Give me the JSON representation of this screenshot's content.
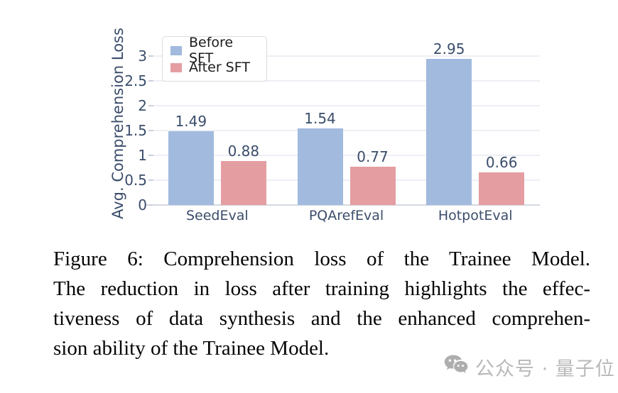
{
  "figure": {
    "caption": {
      "lines": [
        "Figure 6: Comprehension loss of the Trainee Model.",
        "The reduction in loss after training highlights the effec-",
        "tiveness of data synthesis and the enhanced comprehen-",
        "sion ability of the Trainee Model."
      ]
    },
    "watermark": {
      "icon": "wechat-icon",
      "text": "公众号 · 量子位",
      "color": "#b9b9b9"
    }
  },
  "chart_data": {
    "type": "bar",
    "title": "",
    "xlabel": "",
    "ylabel": "Avg. Comprehension Loss",
    "categories": [
      "SeedEval",
      "PQArefEval",
      "HotpotEval"
    ],
    "series": [
      {
        "name": "Before SFT",
        "color": "#a1bade",
        "values": [
          1.49,
          1.54,
          2.95
        ]
      },
      {
        "name": "After SFT",
        "color": "#e49ea2",
        "values": [
          0.88,
          0.77,
          0.66
        ]
      }
    ],
    "yticks": [
      0,
      0.5,
      1,
      1.5,
      2,
      2.5,
      3
    ],
    "ylim": [
      0,
      3.6
    ],
    "grid": true,
    "legend_position": "upper-left",
    "text_color": "#3b4d6b",
    "grid_color": "#edeff5"
  }
}
